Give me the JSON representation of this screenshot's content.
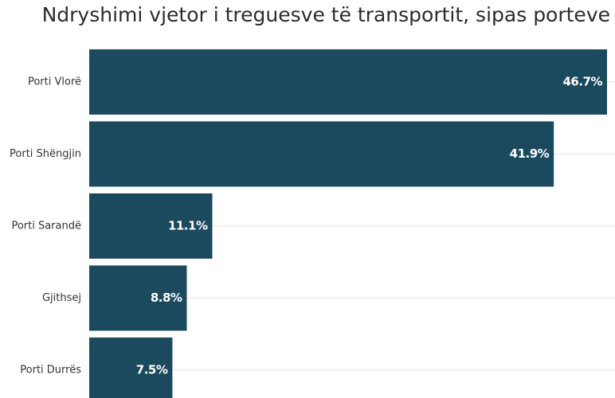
{
  "chart_data": {
    "type": "bar",
    "orientation": "horizontal",
    "title": "Ndryshimi vjetor i treguesve të transportit, sipas porteve",
    "categories": [
      "Porti Vlorë",
      "Porti Shëngjin",
      "Porti Sarandë",
      "Gjithsej",
      "Porti Durrës"
    ],
    "values": [
      46.7,
      41.9,
      11.1,
      8.8,
      7.5
    ],
    "value_labels": [
      "46.7%",
      "41.9%",
      "11.1%",
      "8.8%",
      "7.5%"
    ],
    "color": "#1b4a5e"
  }
}
